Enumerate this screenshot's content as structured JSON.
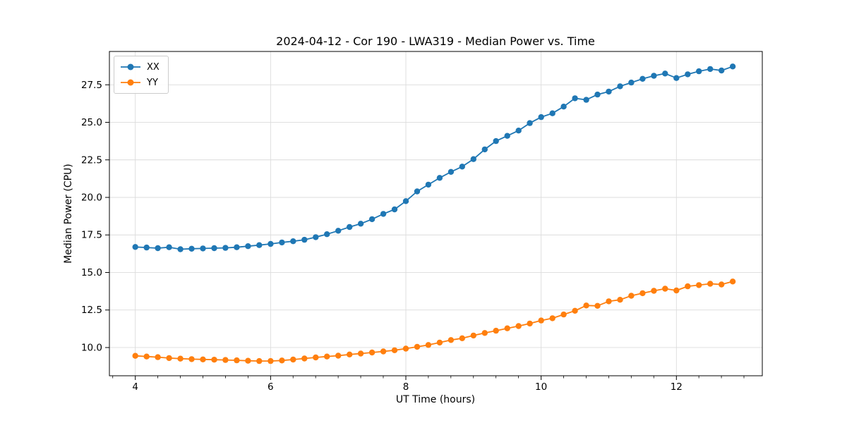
{
  "chart_data": {
    "type": "line",
    "title": "2024-04-12 - Cor 190 - LWA319 - Median Power vs. Time",
    "xlabel": "UT Time (hours)",
    "ylabel": "Median Power (CPU)",
    "xlim": [
      3.617,
      13.27
    ],
    "ylim": [
      8.12,
      29.72
    ],
    "x_major_ticks": [
      4,
      6,
      8,
      10,
      12
    ],
    "x_minor_tick_step": 0.3333,
    "y_major_ticks": [
      10.0,
      12.5,
      15.0,
      17.5,
      20.0,
      22.5,
      25.0,
      27.5
    ],
    "grid": true,
    "grid_color": "#dcdcdc",
    "spine_color": "#000000",
    "text_color": "#000000",
    "legend_position": "upper left",
    "marker": "circle",
    "x": [
      4.0,
      4.167,
      4.333,
      4.5,
      4.667,
      4.833,
      5.0,
      5.167,
      5.333,
      5.5,
      5.667,
      5.833,
      6.0,
      6.167,
      6.333,
      6.5,
      6.667,
      6.833,
      7.0,
      7.167,
      7.333,
      7.5,
      7.667,
      7.833,
      8.0,
      8.167,
      8.333,
      8.5,
      8.667,
      8.833,
      9.0,
      9.167,
      9.333,
      9.5,
      9.667,
      9.833,
      10.0,
      10.167,
      10.333,
      10.5,
      10.667,
      10.833,
      11.0,
      11.167,
      11.333,
      11.5,
      11.667,
      11.833,
      12.0,
      12.167,
      12.333,
      12.5,
      12.667,
      12.833
    ],
    "series": [
      {
        "name": "XX",
        "color": "#1f77b4",
        "values": [
          16.7,
          16.66,
          16.62,
          16.68,
          16.55,
          16.58,
          16.6,
          16.62,
          16.64,
          16.68,
          16.75,
          16.82,
          16.9,
          17.0,
          17.08,
          17.18,
          17.35,
          17.55,
          17.78,
          18.03,
          18.25,
          18.55,
          18.9,
          19.2,
          19.75,
          20.4,
          20.85,
          21.3,
          21.7,
          22.05,
          22.55,
          23.2,
          23.75,
          24.1,
          24.45,
          24.95,
          25.35,
          25.6,
          26.05,
          26.6,
          26.5,
          26.85,
          27.05,
          27.4,
          27.65,
          27.9,
          28.1,
          28.25,
          27.95,
          28.2,
          28.4,
          28.55,
          28.45,
          28.72
        ]
      },
      {
        "name": "YY",
        "color": "#ff7f0e",
        "values": [
          9.45,
          9.4,
          9.36,
          9.3,
          9.26,
          9.23,
          9.21,
          9.19,
          9.17,
          9.15,
          9.12,
          9.1,
          9.1,
          9.14,
          9.2,
          9.27,
          9.34,
          9.4,
          9.46,
          9.54,
          9.6,
          9.67,
          9.74,
          9.82,
          9.93,
          10.05,
          10.17,
          10.33,
          10.5,
          10.62,
          10.8,
          10.97,
          11.12,
          11.28,
          11.43,
          11.6,
          11.8,
          11.95,
          12.2,
          12.45,
          12.8,
          12.78,
          13.08,
          13.18,
          13.45,
          13.62,
          13.78,
          13.92,
          13.8,
          14.08,
          14.16,
          14.25,
          14.2,
          14.4
        ]
      }
    ]
  }
}
